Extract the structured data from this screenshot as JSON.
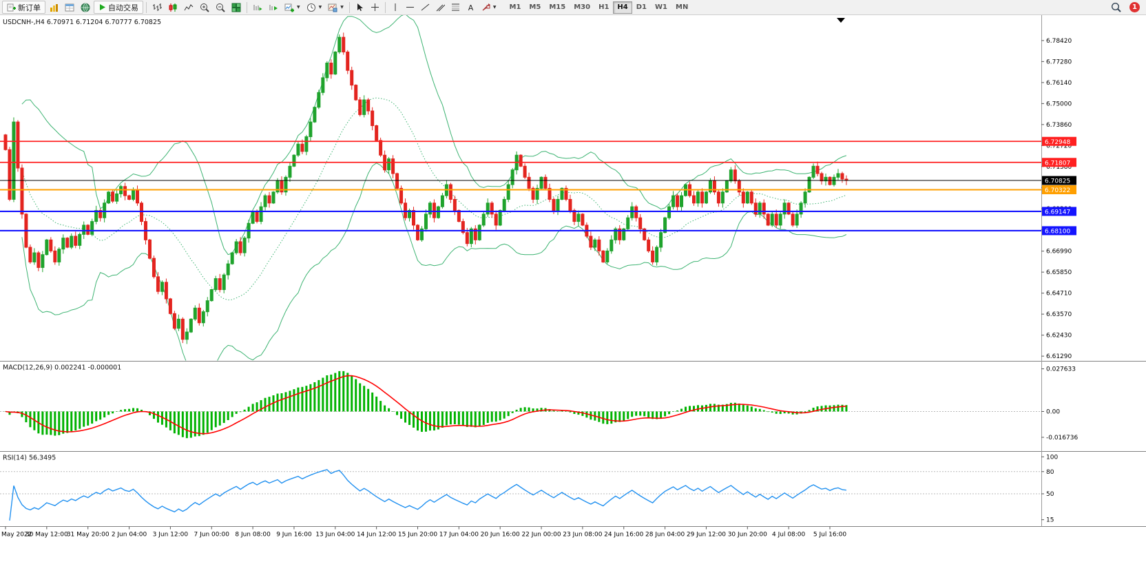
{
  "toolbar": {
    "new_order_label": "新订单",
    "autotrading_label": "自动交易",
    "timeframes": [
      "M1",
      "M5",
      "M15",
      "M30",
      "H1",
      "H4",
      "D1",
      "W1",
      "MN"
    ],
    "active_timeframe": "H4",
    "notification_badge": "1"
  },
  "chart_data": {
    "type": "candlestick",
    "symbol": "USDCNH-",
    "timeframe": "H4",
    "title": "USDCNH-,H4",
    "ohlc_display": {
      "open": "6.70971",
      "high": "6.71204",
      "low": "6.70777",
      "close": "6.70825"
    },
    "x_labels": [
      "May 2022",
      "30 May 12:00",
      "31 May 20:00",
      "2 Jun 04:00",
      "3 Jun 12:00",
      "7 Jun 00:00",
      "8 Jun 08:00",
      "9 Jun 16:00",
      "13 Jun 04:00",
      "14 Jun 12:00",
      "15 Jun 20:00",
      "17 Jun 04:00",
      "20 Jun 16:00",
      "22 Jun 00:00",
      "23 Jun 08:00",
      "24 Jun 16:00",
      "28 Jun 04:00",
      "29 Jun 12:00",
      "30 Jun 20:00",
      "4 Jul 08:00",
      "5 Jul 16:00"
    ],
    "candles_per_xlabel": 10,
    "first_open": 6.733,
    "closes": [
      6.725,
      6.698,
      6.74,
      6.715,
      6.69,
      6.672,
      6.664,
      6.669,
      6.661,
      6.668,
      6.676,
      6.67,
      6.664,
      6.671,
      6.677,
      6.672,
      6.678,
      6.673,
      6.679,
      6.684,
      6.679,
      6.686,
      6.692,
      6.688,
      6.696,
      6.702,
      6.697,
      6.701,
      6.705,
      6.7,
      6.698,
      6.703,
      6.696,
      6.686,
      6.676,
      6.666,
      6.656,
      6.648,
      6.653,
      6.644,
      6.636,
      6.628,
      6.633,
      6.622,
      6.626,
      6.633,
      6.639,
      6.631,
      6.637,
      6.643,
      6.649,
      6.655,
      6.649,
      6.657,
      6.663,
      6.669,
      6.675,
      6.669,
      6.677,
      6.685,
      6.691,
      6.686,
      6.694,
      6.7,
      6.696,
      6.702,
      6.708,
      6.702,
      6.71,
      6.716,
      6.722,
      6.728,
      6.724,
      6.732,
      6.74,
      6.748,
      6.756,
      6.764,
      6.772,
      6.766,
      6.778,
      6.786,
      6.778,
      6.768,
      6.76,
      6.752,
      6.744,
      6.752,
      6.746,
      6.738,
      6.73,
      6.722,
      6.714,
      6.72,
      6.712,
      6.704,
      6.696,
      6.688,
      6.692,
      6.684,
      6.676,
      6.682,
      6.69,
      6.696,
      6.688,
      6.694,
      6.7,
      6.706,
      6.698,
      6.692,
      6.686,
      6.68,
      6.674,
      6.682,
      6.676,
      6.684,
      6.69,
      6.696,
      6.69,
      6.684,
      6.692,
      6.698,
      6.706,
      6.714,
      6.722,
      6.716,
      6.71,
      6.704,
      6.698,
      6.704,
      6.71,
      6.704,
      6.698,
      6.692,
      6.698,
      6.704,
      6.698,
      6.692,
      6.686,
      6.69,
      6.684,
      6.678,
      6.672,
      6.676,
      6.67,
      6.664,
      6.67,
      6.676,
      6.682,
      6.676,
      6.682,
      6.688,
      6.694,
      6.688,
      6.682,
      6.676,
      6.67,
      6.664,
      6.672,
      6.68,
      6.688,
      6.694,
      6.7,
      6.694,
      6.7,
      6.706,
      6.7,
      6.696,
      6.702,
      6.696,
      6.702,
      6.708,
      6.702,
      6.696,
      6.702,
      6.708,
      6.714,
      6.708,
      6.702,
      6.696,
      6.702,
      6.696,
      6.69,
      6.696,
      6.69,
      6.684,
      6.69,
      6.684,
      6.69,
      6.696,
      6.69,
      6.684,
      6.69,
      6.696,
      6.702,
      6.71,
      6.716,
      6.712,
      6.708,
      6.71,
      6.706,
      6.71,
      6.712,
      6.709,
      6.70825
    ],
    "candle_up_color": "#1fa32c",
    "candle_down_color": "#e3241f",
    "y_axis": {
      "min": 6.6107,
      "max": 6.795,
      "labels": [
        "6.78420",
        "6.77280",
        "6.76140",
        "6.75000",
        "6.73860",
        "6.72720",
        "6.71580",
        "6.70440",
        "6.69300",
        "6.68160",
        "6.66990",
        "6.65850",
        "6.64710",
        "6.63570",
        "6.62430",
        "6.61290"
      ]
    },
    "hlines": [
      {
        "price": 6.72948,
        "label": "6.72948",
        "color": "#ff2020",
        "width": 1.8
      },
      {
        "price": 6.71807,
        "label": "6.71807",
        "color": "#ff2020",
        "width": 1.8
      },
      {
        "price": 6.70322,
        "label": "6.70322",
        "color": "#ff9f00",
        "width": 2.0
      },
      {
        "price": 6.69147,
        "label": "6.69147",
        "color": "#1414ff",
        "width": 2.2
      },
      {
        "price": 6.681,
        "label": "6.68100",
        "color": "#1414ff",
        "width": 2.2
      }
    ],
    "current_price": {
      "price": 6.70825,
      "label": "6.70825",
      "color": "#000000"
    },
    "bollinger": {
      "period": 20,
      "deviation": 2,
      "color": "#3cb371"
    },
    "macd": {
      "label": "MACD(12,26,9)",
      "value_text": "0.002241 -0.000001",
      "fast": 12,
      "slow": 26,
      "signal": 9,
      "histogram_color": "#00b200",
      "signal_color": "#ff0000",
      "range": {
        "min": -0.023,
        "max": 0.031
      },
      "axis_labels": [
        {
          "text": "0.027633",
          "value": 0.027633
        },
        {
          "text": "0.00",
          "value": 0
        },
        {
          "text": "-0.016736",
          "value": -0.016736
        }
      ]
    },
    "rsi": {
      "label": "RSI(14)",
      "value_text": "56.3495",
      "period": 14,
      "line_color": "#2090f0",
      "levels": [
        80,
        50
      ],
      "range": {
        "min": 10,
        "max": 104
      },
      "axis_labels": [
        {
          "text": "100",
          "value": 100
        },
        {
          "text": "80",
          "value": 80
        },
        {
          "text": "50",
          "value": 50
        },
        {
          "text": "15",
          "value": 15
        }
      ]
    }
  }
}
